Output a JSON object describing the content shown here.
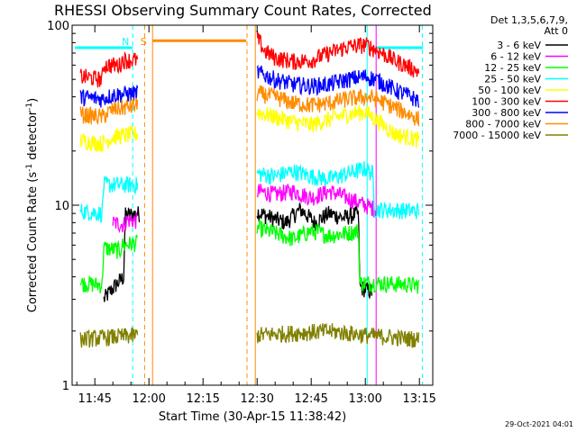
{
  "chart_data": {
    "type": "line",
    "title": "RHESSI Observing Summary Count Rates, Corrected",
    "xlabel": "Start Time (30-Apr-15 11:38:42)",
    "ylabel_main": "Corrected Count Rate (s",
    "ylabel_sup1": "-1",
    "ylabel_mid": " detector",
    "ylabel_sup2": "-1",
    "ylabel_end": ")",
    "yscale": "log",
    "ylim": [
      1,
      100
    ],
    "xlim_minutes": [
      38.7,
      138.7
    ],
    "x_ticks": [
      {
        "label": "11:45",
        "minute": 45
      },
      {
        "label": "12:00",
        "minute": 60
      },
      {
        "label": "12:15",
        "minute": 75
      },
      {
        "label": "12:30",
        "minute": 90
      },
      {
        "label": "12:45",
        "minute": 105
      },
      {
        "label": "13:00",
        "minute": 120
      },
      {
        "label": "13:15",
        "minute": 135
      }
    ],
    "y_ticks": [
      {
        "label": "1",
        "value": 1
      },
      {
        "label": "10",
        "value": 10
      },
      {
        "label": "100",
        "value": 100
      }
    ],
    "legend_header": [
      "Det 1,3,5,6,7,9,",
      "Att 0"
    ],
    "legend_position": "right",
    "footer_date": "29-Oct-2021 04:01",
    "series": [
      {
        "name": "3 - 6 keV",
        "color": "#000000",
        "segments": [
          {
            "x": [
              38.7,
              47,
              47.5,
              53,
              53.5,
              57.5
            ],
            "y": [
              null,
              null,
              3.0,
              4.0,
              8.8,
              9.0
            ]
          },
          {
            "x": [
              90,
              94,
              98,
              102,
              106,
              110,
              114,
              118,
              118.5,
              122,
              122.5
            ],
            "y": [
              9.2,
              8.5,
              8.0,
              9.5,
              8.0,
              9.0,
              8.5,
              9.0,
              3.5,
              3.3,
              null
            ]
          }
        ]
      },
      {
        "name": "6 - 12 keV",
        "color": "#ff00ff",
        "segments": [
          {
            "x": [
              50,
              53,
              54,
              57
            ],
            "y": [
              8.0,
              7.8,
              8.3,
              8.2
            ]
          },
          {
            "x": [
              90,
              95,
              100,
              105,
              110,
              115,
              120,
              123
            ],
            "y": [
              12,
              11.5,
              12,
              11,
              12,
              11,
              10,
              9.5
            ]
          }
        ]
      },
      {
        "name": "12 - 25 keV",
        "color": "#00ff00",
        "segments": [
          {
            "x": [
              41,
              47,
              47.5,
              52,
              52.5,
              57
            ],
            "y": [
              3.7,
              3.6,
              5.8,
              5.6,
              6.0,
              6.2
            ]
          },
          {
            "x": [
              90,
              95,
              100,
              105,
              110,
              115,
              118,
              118.5,
              123
            ],
            "y": [
              7.5,
              7.0,
              6.5,
              7.2,
              6.8,
              7.0,
              7.2,
              3.7,
              3.7
            ]
          },
          {
            "x": [
              123,
              135
            ],
            "y": [
              3.7,
              3.6
            ]
          }
        ]
      },
      {
        "name": "25 - 50 keV",
        "color": "#00ffff",
        "segments": [
          {
            "x": [
              41,
              47,
              47.5,
              57
            ],
            "y": [
              9.3,
              9.0,
              13,
              13
            ]
          },
          {
            "x": [
              90,
              95,
              100,
              105,
              110,
              115,
              120,
              122,
              122.5,
              135
            ],
            "y": [
              15,
              14.5,
              15.5,
              14.5,
              14,
              15,
              16,
              15,
              9.5,
              9.3
            ]
          }
        ]
      },
      {
        "name": "50 - 100 keV",
        "color": "#ffff00",
        "segments": [
          {
            "x": [
              41,
              47,
              50,
              57
            ],
            "y": [
              23,
              22,
              24,
              25
            ]
          },
          {
            "x": [
              90,
              95,
              100,
              105,
              110,
              115,
              120,
              123,
              128,
              135
            ],
            "y": [
              33,
              31,
              29,
              28,
              30,
              32,
              33,
              30,
              25,
              23
            ]
          }
        ]
      },
      {
        "name": "100 - 300 keV",
        "color": "#ff0000",
        "segments": [
          {
            "x": [
              41,
              47,
              47.5,
              52,
              52.5,
              57
            ],
            "y": [
              52,
              50,
              60,
              60,
              64,
              64
            ]
          },
          {
            "x": [
              90,
              92,
              95,
              100,
              105,
              110,
              115,
              120,
              123,
              128,
              135
            ],
            "y": [
              85,
              72,
              66,
              63,
              64,
              70,
              76,
              78,
              73,
              64,
              55
            ]
          }
        ]
      },
      {
        "name": "300 - 800 keV",
        "color": "#0000ff",
        "segments": [
          {
            "x": [
              41,
              47,
              50,
              57
            ],
            "y": [
              40,
              39,
              41,
              42
            ]
          },
          {
            "x": [
              90,
              95,
              100,
              105,
              110,
              115,
              120,
              123,
              128,
              135
            ],
            "y": [
              55,
              50,
              47,
              46,
              47,
              50,
              52,
              50,
              44,
              38
            ]
          }
        ]
      },
      {
        "name": "800 - 7000 keV",
        "color": "#ff8c00",
        "segments": [
          {
            "x": [
              41,
              47,
              50,
              57
            ],
            "y": [
              32,
              31,
              34,
              36
            ]
          },
          {
            "x": [
              90,
              95,
              100,
              105,
              110,
              115,
              120,
              123,
              128,
              135
            ],
            "y": [
              42,
              40,
              37,
              36,
              37,
              39,
              40,
              39,
              35,
              30
            ]
          }
        ]
      },
      {
        "name": "7000 - 15000 keV",
        "color": "#808000",
        "segments": [
          {
            "x": [
              41,
              57
            ],
            "y": [
              1.8,
              1.9
            ]
          },
          {
            "x": [
              90,
              110,
              120,
              135
            ],
            "y": [
              1.9,
              2.0,
              1.9,
              1.8
            ]
          }
        ]
      }
    ],
    "markers": [
      {
        "label": "N",
        "color": "#00ffff",
        "minute": 53.5
      },
      {
        "label": "S",
        "color": "#ff8c00",
        "minute": 58.5
      }
    ],
    "vertical_lines": [
      {
        "minute": 55.5,
        "color": "#00ffff",
        "style": "dashed"
      },
      {
        "minute": 58.8,
        "color": "#ff8c00",
        "style": "dashed"
      },
      {
        "minute": 61.0,
        "color": "#ff8c00",
        "style": "solid"
      },
      {
        "minute": 87.2,
        "color": "#ff8c00",
        "style": "dashed"
      },
      {
        "minute": 89.5,
        "color": "#ff8c00",
        "style": "solid"
      },
      {
        "minute": 120.5,
        "color": "#00ffff",
        "style": "solid"
      },
      {
        "minute": 123.0,
        "color": "#ff00ff",
        "style": "solid"
      },
      {
        "minute": 135.8,
        "color": "#00ffff",
        "style": "dashed"
      }
    ],
    "horizontal_bars": [
      {
        "color": "#00ffff",
        "x": [
          39.5,
          55.5
        ],
        "y": 75
      },
      {
        "color": "#ff8c00",
        "x": [
          61.0,
          87.0
        ],
        "y": 82
      },
      {
        "color": "#00ffff",
        "x": [
          123.0,
          136.0
        ],
        "y": 75
      }
    ]
  }
}
